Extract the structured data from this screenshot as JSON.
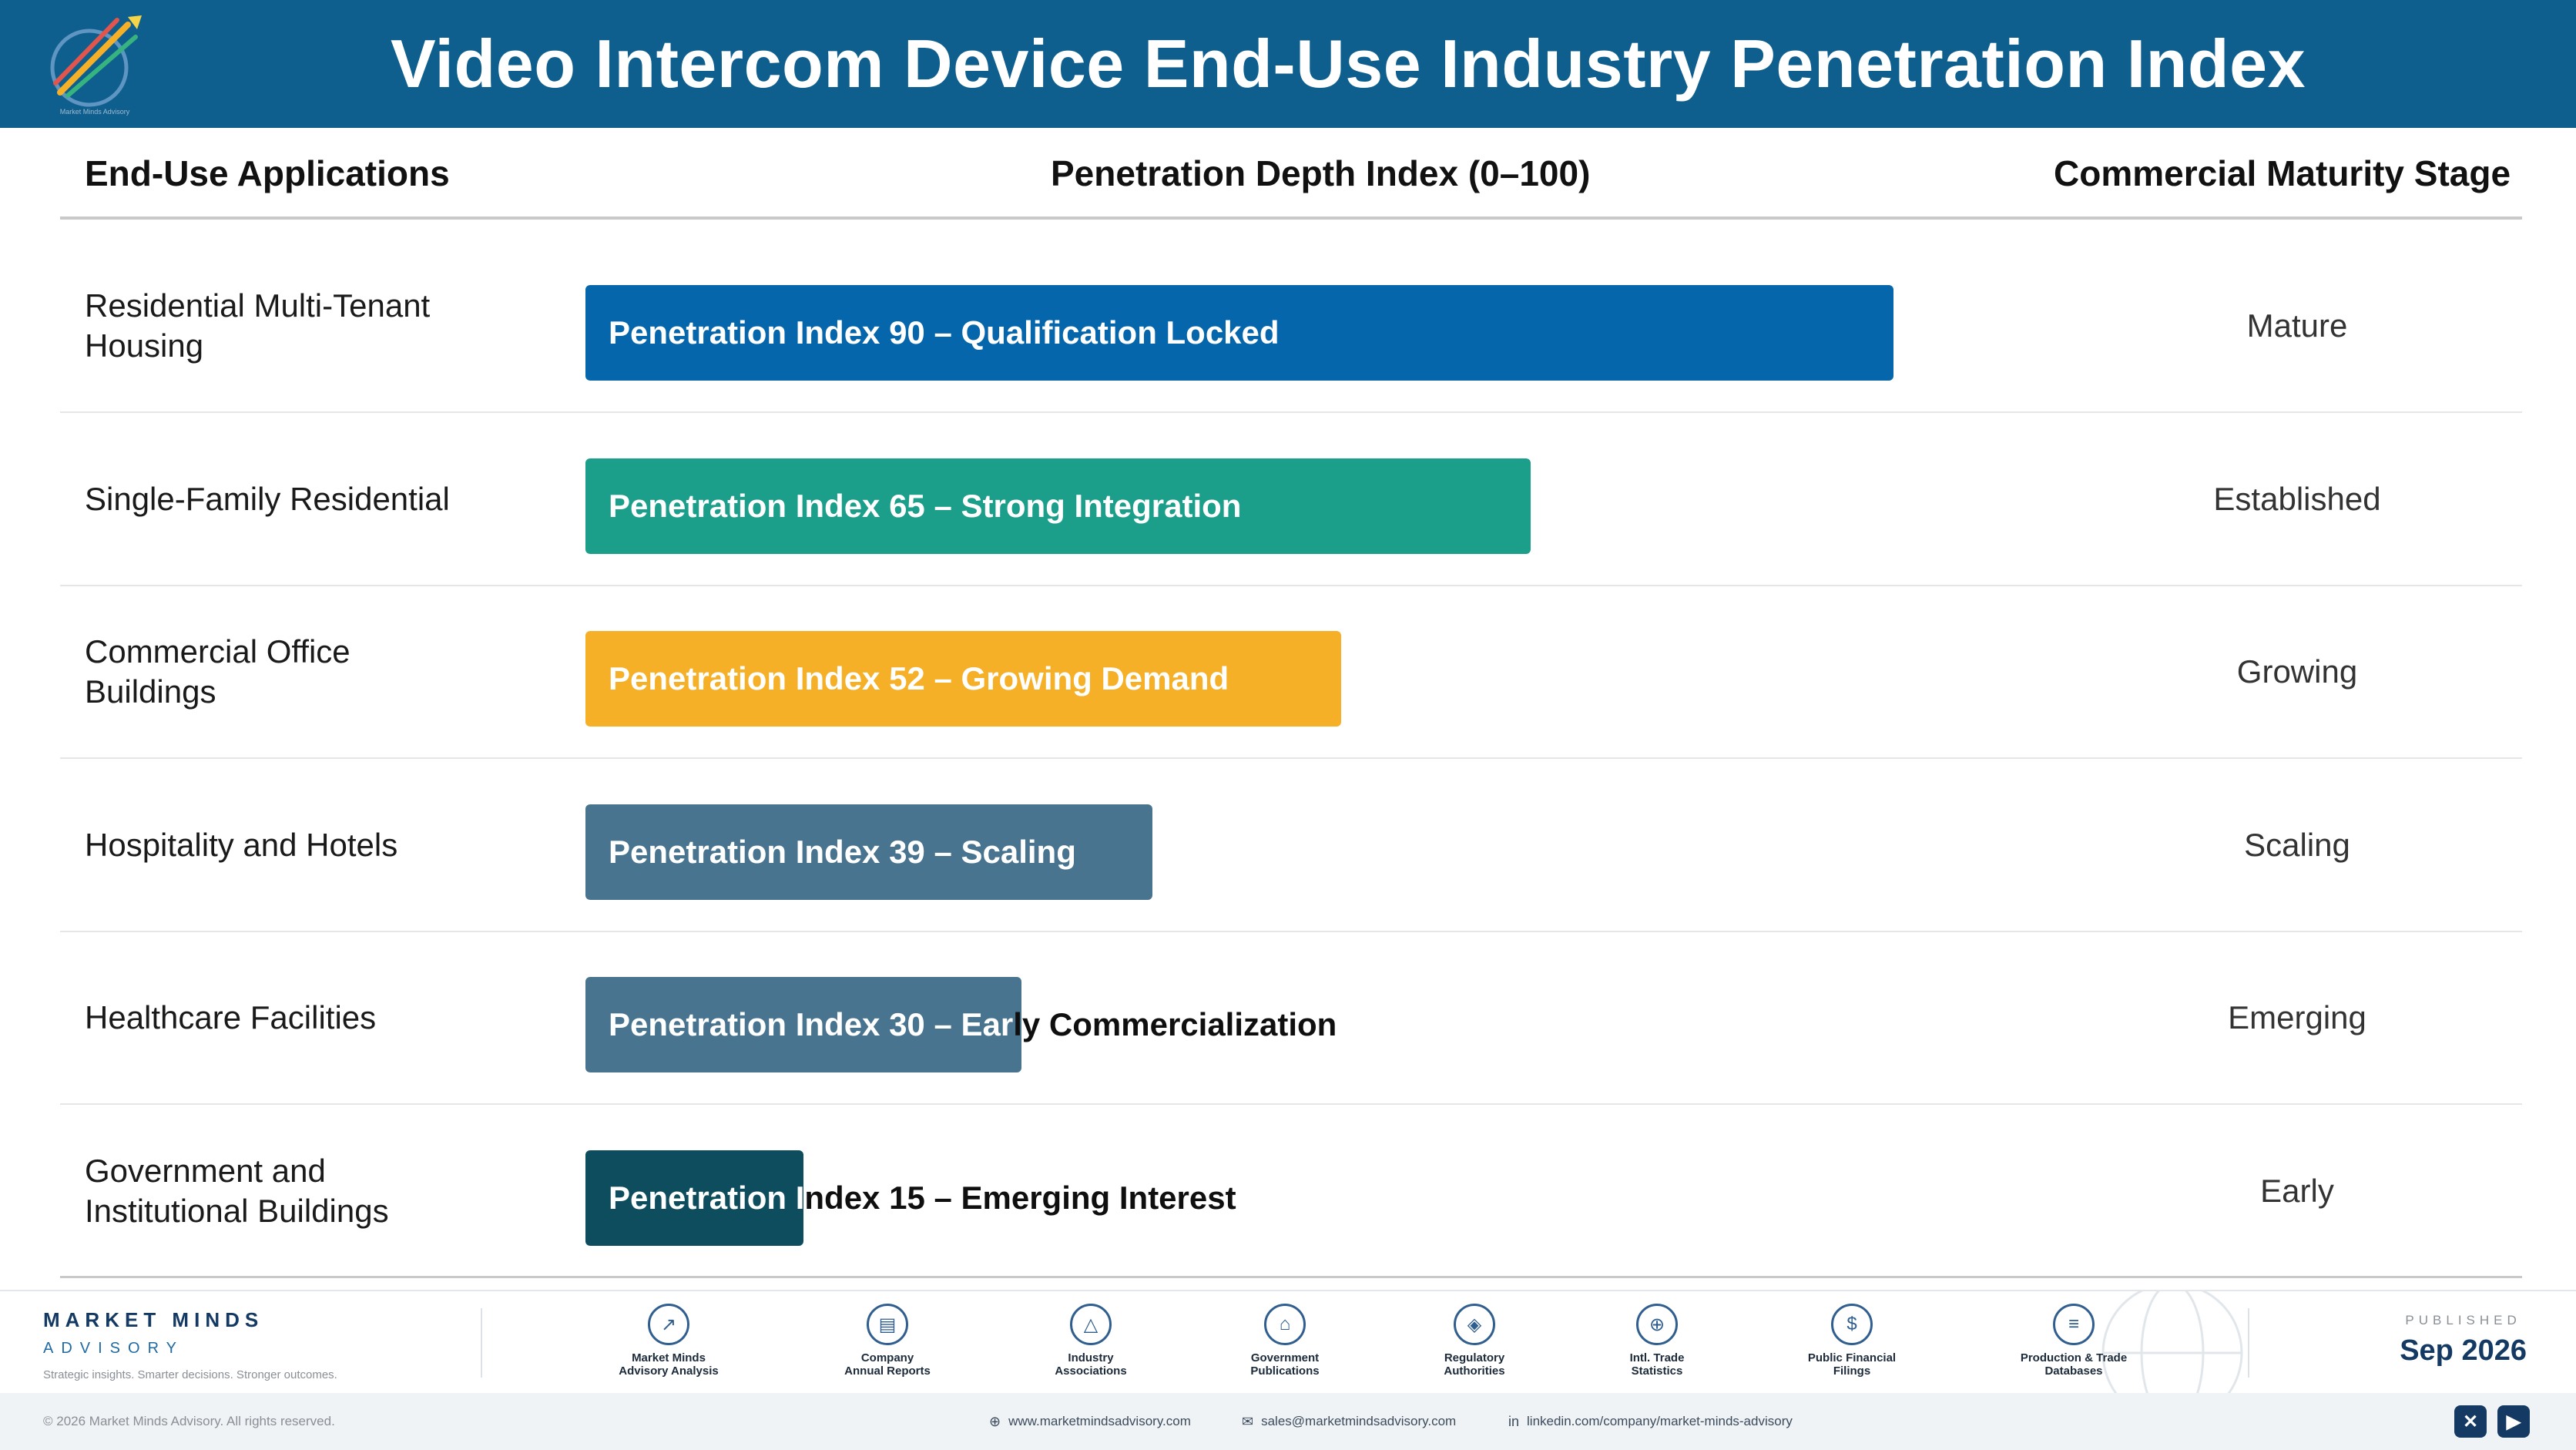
{
  "header": {
    "title": "Video Intercom Device End-Use Industry Penetration Index",
    "logo_caption": "Market Minds Advisory"
  },
  "columns": {
    "apps": "End-Use Applications",
    "depth": "Penetration Depth Index (0–100)",
    "stage": "Commercial Maturity Stage"
  },
  "chart_data": {
    "type": "bar",
    "orientation": "horizontal",
    "xlim": [
      0,
      100
    ],
    "categories": [
      "Residential Multi-Tenant Housing",
      "Single-Family Residential",
      "Commercial Office Buildings",
      "Hospitality and Hotels",
      "Healthcare Facilities",
      "Government and Institutional Buildings"
    ],
    "values": [
      90,
      65,
      52,
      39,
      30,
      15
    ]
  },
  "rows": [
    {
      "app_line1": "Residential Multi-Tenant",
      "app_line2": "Housing",
      "value": 90,
      "label_split": "Penetration Index 90 – Qualification Locked",
      "label_rest": "",
      "stage": "Mature",
      "color": "#0566ac"
    },
    {
      "app_line1": "Single-Family Residential",
      "app_line2": "",
      "value": 65,
      "label_split": "Penetration Index 65 – Strong Integration",
      "label_rest": "",
      "stage": "Established",
      "color": "#1b9e8a"
    },
    {
      "app_line1": "Commercial Office",
      "app_line2": "Buildings",
      "value": 52,
      "label_split": "Penetration Index 52 – Growing Demand",
      "label_rest": "",
      "stage": "Growing",
      "color": "#f5b027"
    },
    {
      "app_line1": "Hospitality and Hotels",
      "app_line2": "",
      "value": 39,
      "label_split": "Penetration Index 39 – Scaling",
      "label_rest": "",
      "stage": "Scaling",
      "color": "#48748f"
    },
    {
      "app_line1": "Healthcare Facilities",
      "app_line2": "",
      "value": 30,
      "label_split": "Penetration Index 30 – Ear",
      "label_rest": "ly Commercialization",
      "stage": "Emerging",
      "color": "#48748f"
    },
    {
      "app_line1": "Government and",
      "app_line2": "Institutional Buildings",
      "value": 15,
      "label_split": "Penetration I",
      "label_rest": "ndex 15 – Emerging Interest",
      "stage": "Early",
      "color": "#0d4d5e"
    }
  ],
  "footer": {
    "brand_name": "MARKET MINDS",
    "brand_sub": "ADVISORY",
    "brand_tag": "Strategic insights. Smarter decisions. Stronger outcomes.",
    "sources": [
      {
        "l1": "Market Minds",
        "l2": "Advisory Analysis",
        "icon": "chart-line-icon"
      },
      {
        "l1": "Company",
        "l2": "Annual Reports",
        "icon": "document-icon"
      },
      {
        "l1": "Industry",
        "l2": "Associations",
        "icon": "network-icon"
      },
      {
        "l1": "Government",
        "l2": "Publications",
        "icon": "bank-icon"
      },
      {
        "l1": "Regulatory",
        "l2": "Authorities",
        "icon": "shield-icon"
      },
      {
        "l1": "Intl. Trade",
        "l2": "Statistics",
        "icon": "globe-icon"
      },
      {
        "l1": "Public Financial",
        "l2": "Filings",
        "icon": "dollar-icon"
      },
      {
        "l1": "Production & Trade",
        "l2": "Databases",
        "icon": "database-icon"
      }
    ],
    "published_label": "PUBLISHED",
    "published_date": "Sep 2026",
    "copyright": "© 2026 Market Minds Advisory. All rights reserved.",
    "website": "www.marketmindsadvisory.com",
    "email": "sales@marketmindsadvisory.com",
    "linkedin": "linkedin.com/company/market-minds-advisory"
  }
}
